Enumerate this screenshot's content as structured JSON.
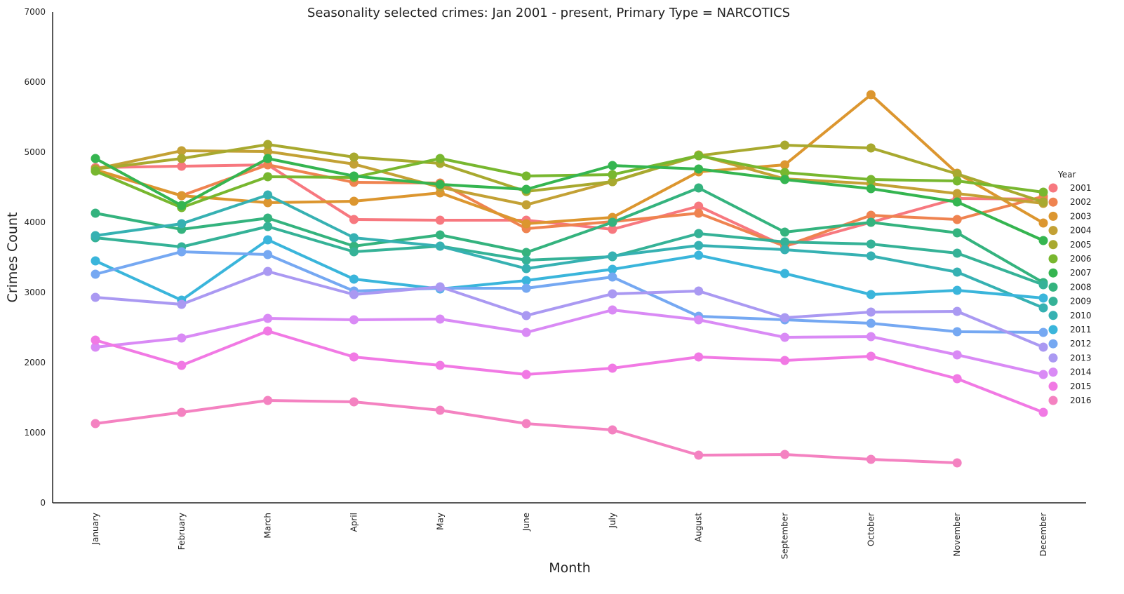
{
  "chart_data": {
    "type": "line",
    "title": "Seasonality selected crimes: Jan 2001 - present, Primary Type = NARCOTICS",
    "xlabel": "Month",
    "ylabel": "Crimes Count",
    "ylim": [
      0,
      7000
    ],
    "yticks": [
      0,
      1000,
      2000,
      3000,
      4000,
      5000,
      6000,
      7000
    ],
    "grid": false,
    "legend_title": "Year",
    "legend_position": "right",
    "categories": [
      "January",
      "February",
      "March",
      "April",
      "May",
      "June",
      "July",
      "August",
      "September",
      "October",
      "November",
      "December"
    ],
    "series": [
      {
        "name": "2001",
        "color": "#f7787f",
        "values": [
          4780,
          4800,
          4820,
          4040,
          4030,
          4030,
          3900,
          4230,
          3660,
          4000,
          4340,
          4330
        ]
      },
      {
        "name": "2002",
        "color": "#ef8350",
        "values": [
          4740,
          4380,
          4820,
          4570,
          4560,
          3910,
          4010,
          4130,
          3660,
          4100,
          4040,
          4370
        ]
      },
      {
        "name": "2003",
        "color": "#dc962f",
        "values": [
          4750,
          4380,
          4280,
          4300,
          4420,
          3980,
          4070,
          4720,
          4820,
          5820,
          4700,
          3990
        ]
      },
      {
        "name": "2004",
        "color": "#c3a135",
        "values": [
          4760,
          5020,
          5010,
          4830,
          4500,
          4250,
          4580,
          4960,
          4620,
          4550,
          4410,
          4270
        ]
      },
      {
        "name": "2005",
        "color": "#a8a92f",
        "values": [
          4760,
          4910,
          5110,
          4930,
          4840,
          4440,
          4580,
          4950,
          5100,
          5060,
          4690,
          4290
        ]
      },
      {
        "name": "2006",
        "color": "#78b72f",
        "values": [
          4730,
          4210,
          4650,
          4640,
          4910,
          4660,
          4680,
          4950,
          4710,
          4610,
          4590,
          4430
        ]
      },
      {
        "name": "2007",
        "color": "#35b550",
        "values": [
          4910,
          4240,
          4910,
          4660,
          4540,
          4470,
          4810,
          4760,
          4610,
          4480,
          4290,
          3740
        ]
      },
      {
        "name": "2008",
        "color": "#34b37e",
        "values": [
          4130,
          3900,
          4060,
          3660,
          3820,
          3570,
          4000,
          4490,
          3860,
          4000,
          3850,
          3140
        ]
      },
      {
        "name": "2009",
        "color": "#35b297",
        "values": [
          3780,
          3650,
          3940,
          3580,
          3660,
          3460,
          3510,
          3840,
          3720,
          3690,
          3560,
          3110
        ]
      },
      {
        "name": "2010",
        "color": "#36b1b2",
        "values": [
          3810,
          3980,
          4390,
          3780,
          3660,
          3340,
          3520,
          3670,
          3610,
          3520,
          3290,
          2780
        ]
      },
      {
        "name": "2011",
        "color": "#3ab5db",
        "values": [
          3450,
          2890,
          3750,
          3190,
          3050,
          3170,
          3330,
          3530,
          3270,
          2970,
          3030,
          2920
        ]
      },
      {
        "name": "2012",
        "color": "#75a8f2",
        "values": [
          3260,
          3580,
          3540,
          3020,
          3060,
          3060,
          3220,
          2660,
          2610,
          2560,
          2440,
          2430
        ]
      },
      {
        "name": "2013",
        "color": "#aa99f2",
        "values": [
          2930,
          2830,
          3300,
          2970,
          3080,
          2670,
          2980,
          3020,
          2640,
          2720,
          2730,
          2220
        ]
      },
      {
        "name": "2014",
        "color": "#d98af5",
        "values": [
          2220,
          2350,
          2630,
          2610,
          2620,
          2430,
          2750,
          2610,
          2360,
          2370,
          2110,
          1830
        ]
      },
      {
        "name": "2015",
        "color": "#f179e4",
        "values": [
          2320,
          1960,
          2450,
          2080,
          1960,
          1830,
          1920,
          2080,
          2030,
          2090,
          1770,
          1290
        ]
      },
      {
        "name": "2016",
        "color": "#f482c1",
        "values": [
          1130,
          1290,
          1460,
          1440,
          1320,
          1130,
          1040,
          680,
          690,
          620,
          570,
          null
        ]
      }
    ]
  }
}
